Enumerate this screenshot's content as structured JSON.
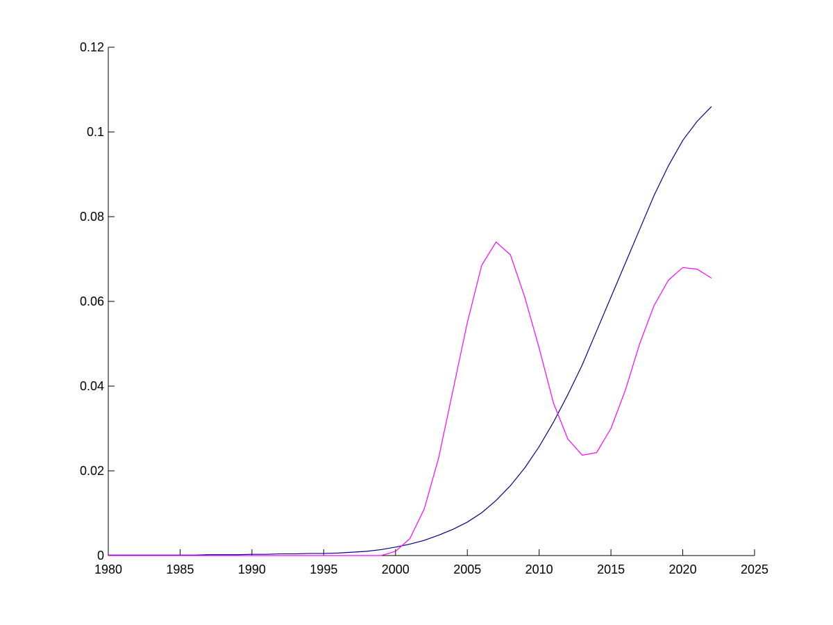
{
  "chart_data": {
    "type": "line",
    "x": [
      1980,
      1981,
      1982,
      1983,
      1984,
      1985,
      1986,
      1987,
      1988,
      1989,
      1990,
      1991,
      1992,
      1993,
      1994,
      1995,
      1996,
      1997,
      1998,
      1999,
      2000,
      2001,
      2002,
      2003,
      2004,
      2005,
      2006,
      2007,
      2008,
      2009,
      2010,
      2011,
      2012,
      2013,
      2014,
      2015,
      2016,
      2017,
      2018,
      2019,
      2020,
      2021,
      2022
    ],
    "series": [
      {
        "color": "#00008b",
        "values": [
          0.0001,
          0.0001,
          0.0001,
          0.0001,
          0.0001,
          0.0001,
          0.0001,
          0.0002,
          0.0002,
          0.0002,
          0.0003,
          0.0003,
          0.0004,
          0.0004,
          0.0005,
          0.0005,
          0.0006,
          0.0008,
          0.001,
          0.0014,
          0.002,
          0.0027,
          0.0036,
          0.0048,
          0.0062,
          0.0079,
          0.0101,
          0.013,
          0.0165,
          0.0207,
          0.0257,
          0.0315,
          0.038,
          0.045,
          0.053,
          0.061,
          0.069,
          0.077,
          0.085,
          0.092,
          0.098,
          0.1025,
          0.106
        ]
      },
      {
        "color": "#ff00ff",
        "values": [
          0,
          0,
          0,
          0,
          0,
          0,
          0,
          0,
          0,
          0,
          0,
          0,
          0,
          0,
          0,
          0,
          0,
          0,
          0,
          0,
          0.001,
          0.004,
          0.011,
          0.023,
          0.039,
          0.055,
          0.0685,
          0.074,
          0.071,
          0.061,
          0.049,
          0.036,
          0.0275,
          0.0237,
          0.0243,
          0.03,
          0.039,
          0.05,
          0.059,
          0.065,
          0.068,
          0.0676,
          0.0655
        ]
      }
    ],
    "xlim": [
      1980,
      2025
    ],
    "xticks": [
      1980,
      1985,
      1990,
      1995,
      2000,
      2005,
      2010,
      2015,
      2020,
      2025
    ],
    "ylim": [
      0,
      0.12
    ],
    "yticks": [
      0,
      0.02,
      0.04,
      0.06,
      0.08,
      0.1,
      0.12
    ]
  }
}
